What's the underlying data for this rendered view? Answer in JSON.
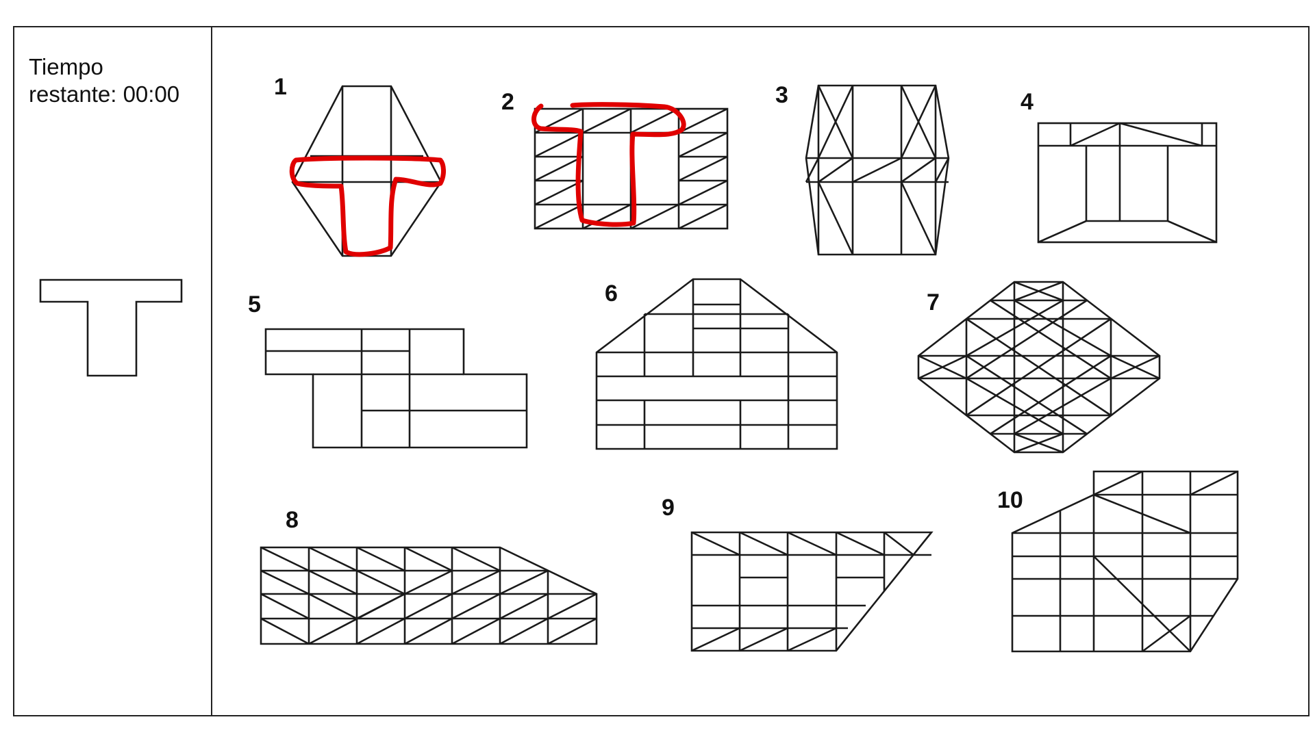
{
  "timer": {
    "label_line1": "Tiempo",
    "label_line2": "restante: 00:00"
  },
  "target": {
    "shape": "T"
  },
  "figures": [
    {
      "number": "1",
      "marked": true
    },
    {
      "number": "2",
      "marked": true
    },
    {
      "number": "3",
      "marked": false
    },
    {
      "number": "4",
      "marked": false
    },
    {
      "number": "5",
      "marked": false
    },
    {
      "number": "6",
      "marked": false
    },
    {
      "number": "7",
      "marked": false
    },
    {
      "number": "8",
      "marked": false
    },
    {
      "number": "9",
      "marked": false
    },
    {
      "number": "10",
      "marked": false
    }
  ],
  "colors": {
    "line": "#1a1a1a",
    "marker": "#e00000",
    "background": "#ffffff"
  }
}
